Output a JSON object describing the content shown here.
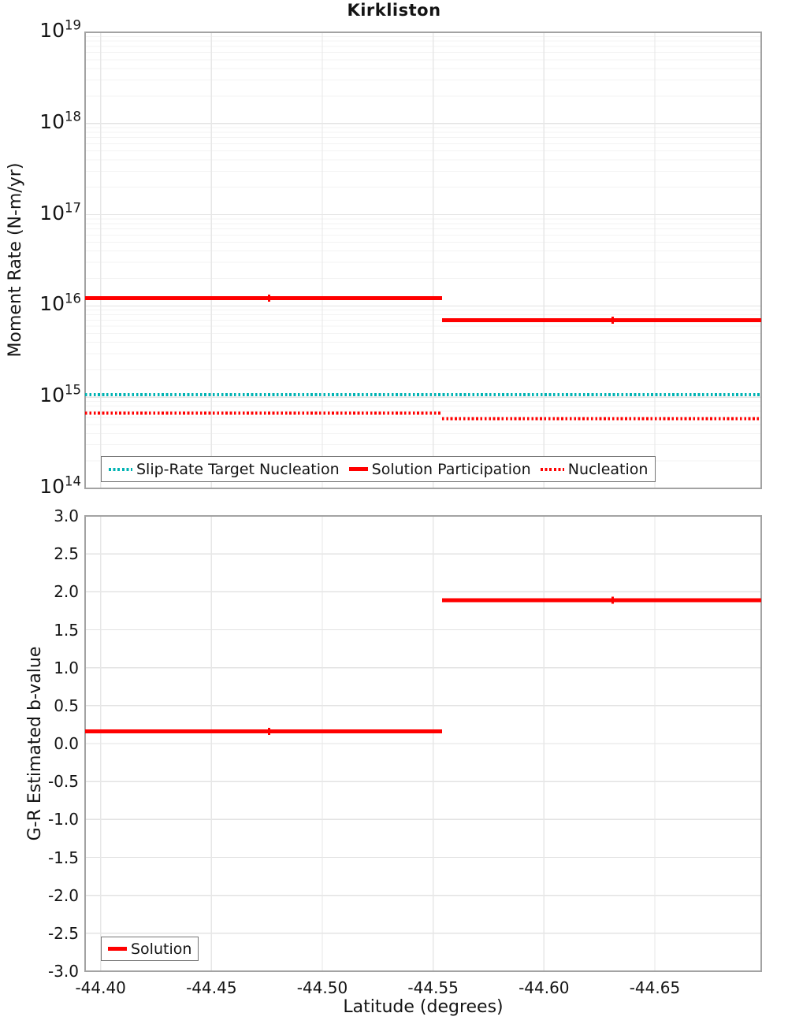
{
  "figure": {
    "background": "#ffffff"
  },
  "chart_data": [
    {
      "type": "line",
      "subtype": "step",
      "title": "Kirkliston",
      "ylabel": "Moment Rate (N-m/yr)",
      "yscale": "log",
      "ylim": [
        100000000000000.0,
        1e+19
      ],
      "xlim": [
        -44.393,
        -44.698
      ],
      "grid": true,
      "legend_position": "lower left",
      "x_ticks": [
        -44.4,
        -44.45,
        -44.5,
        -44.55,
        -44.6,
        -44.65
      ],
      "x_tick_labels": [
        "-44.40",
        "-44.45",
        "-44.50",
        "-44.55",
        "-44.60",
        "-44.65"
      ],
      "y_ticks": [
        {
          "label_base": "10",
          "label_exp": "19",
          "value": 1e+19
        },
        {
          "label_base": "10",
          "label_exp": "18",
          "value": 1e+18
        },
        {
          "label_base": "10",
          "label_exp": "17",
          "value": 1e+17
        },
        {
          "label_base": "10",
          "label_exp": "16",
          "value": 1e+16
        },
        {
          "label_base": "10",
          "label_exp": "15",
          "value": 1000000000000000.0
        },
        {
          "label_base": "10",
          "label_exp": "14",
          "value": 100000000000000.0
        }
      ],
      "series": [
        {
          "name": "Slip-Rate Target Nucleation",
          "color": "#00b3b3",
          "style": "dotted",
          "width": 4,
          "segments": [
            {
              "x0": -44.393,
              "x1": -44.698,
              "y": 1070000000000000.0
            }
          ]
        },
        {
          "name": "Solution Participation",
          "color": "#ff0000",
          "style": "solid",
          "width": 5,
          "segments": [
            {
              "x0": -44.393,
              "x1": -44.554,
              "y": 1.22e+16
            },
            {
              "x0": -44.554,
              "x1": -44.698,
              "y": 7000000000000000.0
            }
          ],
          "points": [
            {
              "x": -44.476,
              "y": 1.22e+16
            },
            {
              "x": -44.631,
              "y": 7000000000000000.0
            }
          ]
        },
        {
          "name": "Nucleation",
          "color": "#ff0000",
          "style": "dotted",
          "width": 4,
          "segments": [
            {
              "x0": -44.393,
              "x1": -44.554,
              "y": 670000000000000.0
            },
            {
              "x0": -44.554,
              "x1": -44.698,
              "y": 580000000000000.0
            }
          ]
        }
      ]
    },
    {
      "type": "line",
      "subtype": "step",
      "title": "",
      "xlabel": "Latitude (degrees)",
      "ylabel": "G-R Estimated b-value",
      "yscale": "linear",
      "ylim": [
        -3.0,
        3.0
      ],
      "xlim": [
        -44.393,
        -44.698
      ],
      "grid": true,
      "legend_position": "lower left",
      "x_ticks": [
        -44.4,
        -44.45,
        -44.5,
        -44.55,
        -44.6,
        -44.65
      ],
      "x_tick_labels": [
        "-44.40",
        "-44.45",
        "-44.50",
        "-44.55",
        "-44.60",
        "-44.65"
      ],
      "y_ticks": [
        {
          "label": "3.0",
          "value": 3.0
        },
        {
          "label": "2.5",
          "value": 2.5
        },
        {
          "label": "2.0",
          "value": 2.0
        },
        {
          "label": "1.5",
          "value": 1.5
        },
        {
          "label": "1.0",
          "value": 1.0
        },
        {
          "label": "0.5",
          "value": 0.5
        },
        {
          "label": "0.0",
          "value": 0.0
        },
        {
          "label": "-0.5",
          "value": -0.5
        },
        {
          "label": "-1.0",
          "value": -1.0
        },
        {
          "label": "-1.5",
          "value": -1.5
        },
        {
          "label": "-2.0",
          "value": -2.0
        },
        {
          "label": "-2.5",
          "value": -2.5
        },
        {
          "label": "-3.0",
          "value": -3.0
        }
      ],
      "series": [
        {
          "name": "Solution",
          "color": "#ff0000",
          "style": "solid",
          "width": 5,
          "segments": [
            {
              "x0": -44.393,
              "x1": -44.554,
              "y": 0.16
            },
            {
              "x0": -44.554,
              "x1": -44.698,
              "y": 1.89
            }
          ],
          "points": [
            {
              "x": -44.476,
              "y": 0.16
            },
            {
              "x": -44.631,
              "y": 1.89
            }
          ]
        }
      ]
    }
  ]
}
